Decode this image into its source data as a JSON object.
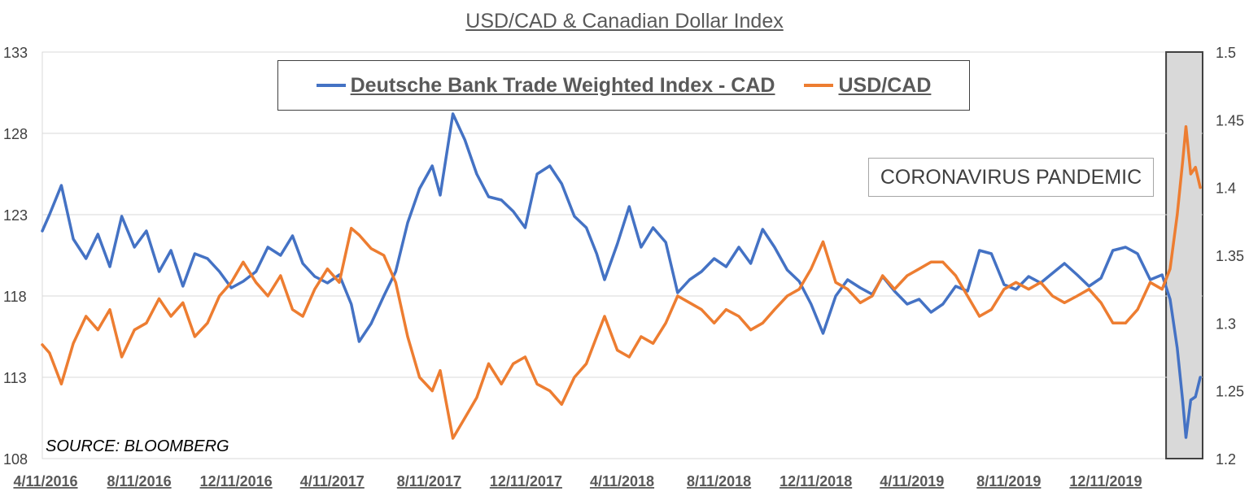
{
  "chart_data": {
    "type": "line",
    "title": "USD/CAD & Canadian Dollar Index",
    "source": "SOURCE: BLOOMBERG",
    "annotation": "CORONAVIRUS PANDEMIC",
    "grid": "horizontal",
    "legend_placement": "top-center",
    "x_range": [
      "2016-04-11",
      "2020-04-11"
    ],
    "x_tick_labels": [
      "4/11/2016",
      "8/11/2016",
      "12/11/2016",
      "4/11/2017",
      "8/11/2017",
      "12/11/2017",
      "4/11/2018",
      "8/11/2018",
      "12/11/2018",
      "4/11/2019",
      "8/11/2019",
      "12/11/2019"
    ],
    "y_left": {
      "ylim": [
        108,
        133
      ],
      "ticks": [
        108,
        113,
        118,
        123,
        128,
        133
      ]
    },
    "y_right": {
      "ylim": [
        1.2,
        1.5
      ],
      "ticks": [
        "1.2",
        "1.25",
        "1.3",
        "1.35",
        "1.4",
        "1.45",
        "1.5"
      ]
    },
    "shaded_period": [
      "2020-02-25",
      "2020-04-11"
    ],
    "series": [
      {
        "name": "Deutsche Bank Trade Weighted Index - CAD",
        "axis": "left",
        "color": "#4472c4",
        "points": [
          [
            "2016-04-11",
            122.0
          ],
          [
            "2016-04-20",
            123.0
          ],
          [
            "2016-05-05",
            124.8
          ],
          [
            "2016-05-20",
            121.5
          ],
          [
            "2016-06-05",
            120.3
          ],
          [
            "2016-06-20",
            121.8
          ],
          [
            "2016-07-05",
            119.8
          ],
          [
            "2016-07-20",
            122.9
          ],
          [
            "2016-08-05",
            121.0
          ],
          [
            "2016-08-20",
            122.0
          ],
          [
            "2016-09-05",
            119.5
          ],
          [
            "2016-09-20",
            120.8
          ],
          [
            "2016-10-05",
            118.6
          ],
          [
            "2016-10-20",
            120.6
          ],
          [
            "2016-11-05",
            120.3
          ],
          [
            "2016-11-20",
            119.5
          ],
          [
            "2016-12-05",
            118.5
          ],
          [
            "2016-12-20",
            118.9
          ],
          [
            "2017-01-05",
            119.5
          ],
          [
            "2017-01-20",
            121.0
          ],
          [
            "2017-02-05",
            120.5
          ],
          [
            "2017-02-20",
            121.7
          ],
          [
            "2017-03-05",
            120.0
          ],
          [
            "2017-03-20",
            119.2
          ],
          [
            "2017-04-05",
            118.8
          ],
          [
            "2017-04-20",
            119.3
          ],
          [
            "2017-05-05",
            117.5
          ],
          [
            "2017-05-15",
            115.2
          ],
          [
            "2017-05-30",
            116.3
          ],
          [
            "2017-06-15",
            118.0
          ],
          [
            "2017-06-30",
            119.5
          ],
          [
            "2017-07-15",
            122.5
          ],
          [
            "2017-07-30",
            124.6
          ],
          [
            "2017-08-15",
            126.0
          ],
          [
            "2017-08-25",
            124.2
          ],
          [
            "2017-09-10",
            129.2
          ],
          [
            "2017-09-25",
            127.6
          ],
          [
            "2017-10-10",
            125.5
          ],
          [
            "2017-10-25",
            124.1
          ],
          [
            "2017-11-10",
            123.9
          ],
          [
            "2017-11-25",
            123.2
          ],
          [
            "2017-12-10",
            122.2
          ],
          [
            "2017-12-25",
            125.5
          ],
          [
            "2018-01-10",
            126.0
          ],
          [
            "2018-01-25",
            124.9
          ],
          [
            "2018-02-10",
            122.9
          ],
          [
            "2018-02-25",
            122.2
          ],
          [
            "2018-03-10",
            120.6
          ],
          [
            "2018-03-20",
            119.0
          ],
          [
            "2018-04-05",
            121.2
          ],
          [
            "2018-04-20",
            123.5
          ],
          [
            "2018-05-05",
            121.0
          ],
          [
            "2018-05-20",
            122.2
          ],
          [
            "2018-06-05",
            121.3
          ],
          [
            "2018-06-20",
            118.2
          ],
          [
            "2018-07-05",
            119.0
          ],
          [
            "2018-07-20",
            119.5
          ],
          [
            "2018-08-05",
            120.3
          ],
          [
            "2018-08-20",
            119.8
          ],
          [
            "2018-09-05",
            121.0
          ],
          [
            "2018-09-20",
            120.0
          ],
          [
            "2018-10-05",
            122.1
          ],
          [
            "2018-10-20",
            121.0
          ],
          [
            "2018-11-05",
            119.6
          ],
          [
            "2018-11-20",
            118.9
          ],
          [
            "2018-12-05",
            117.5
          ],
          [
            "2018-12-20",
            115.7
          ],
          [
            "2019-01-05",
            118.0
          ],
          [
            "2019-01-20",
            119.0
          ],
          [
            "2019-02-05",
            118.5
          ],
          [
            "2019-02-20",
            118.1
          ],
          [
            "2019-03-05",
            119.2
          ],
          [
            "2019-03-20",
            118.3
          ],
          [
            "2019-04-05",
            117.5
          ],
          [
            "2019-04-20",
            117.8
          ],
          [
            "2019-05-05",
            117.0
          ],
          [
            "2019-05-20",
            117.5
          ],
          [
            "2019-06-05",
            118.6
          ],
          [
            "2019-06-20",
            118.3
          ],
          [
            "2019-07-05",
            120.8
          ],
          [
            "2019-07-20",
            120.6
          ],
          [
            "2019-08-05",
            118.7
          ],
          [
            "2019-08-20",
            118.4
          ],
          [
            "2019-09-05",
            119.2
          ],
          [
            "2019-09-20",
            118.8
          ],
          [
            "2019-10-05",
            119.4
          ],
          [
            "2019-10-20",
            120.0
          ],
          [
            "2019-11-05",
            119.3
          ],
          [
            "2019-11-20",
            118.6
          ],
          [
            "2019-12-05",
            119.1
          ],
          [
            "2019-12-20",
            120.8
          ],
          [
            "2020-01-05",
            121.0
          ],
          [
            "2020-01-20",
            120.6
          ],
          [
            "2020-02-05",
            119.0
          ],
          [
            "2020-02-20",
            119.3
          ],
          [
            "2020-03-01",
            117.8
          ],
          [
            "2020-03-10",
            114.8
          ],
          [
            "2020-03-17",
            111.5
          ],
          [
            "2020-03-21",
            109.3
          ],
          [
            "2020-03-27",
            111.6
          ],
          [
            "2020-04-02",
            111.8
          ],
          [
            "2020-04-08",
            113.0
          ]
        ]
      },
      {
        "name": "USD/CAD",
        "axis": "right",
        "color": "#ed7d31",
        "points": [
          [
            "2016-04-11",
            1.284
          ],
          [
            "2016-04-20",
            1.278
          ],
          [
            "2016-05-05",
            1.255
          ],
          [
            "2016-05-20",
            1.285
          ],
          [
            "2016-06-05",
            1.305
          ],
          [
            "2016-06-20",
            1.295
          ],
          [
            "2016-07-05",
            1.31
          ],
          [
            "2016-07-20",
            1.275
          ],
          [
            "2016-08-05",
            1.295
          ],
          [
            "2016-08-20",
            1.3
          ],
          [
            "2016-09-05",
            1.318
          ],
          [
            "2016-09-20",
            1.305
          ],
          [
            "2016-10-05",
            1.315
          ],
          [
            "2016-10-20",
            1.29
          ],
          [
            "2016-11-05",
            1.3
          ],
          [
            "2016-11-20",
            1.32
          ],
          [
            "2016-12-05",
            1.33
          ],
          [
            "2016-12-20",
            1.345
          ],
          [
            "2017-01-05",
            1.33
          ],
          [
            "2017-01-20",
            1.32
          ],
          [
            "2017-02-05",
            1.335
          ],
          [
            "2017-02-20",
            1.31
          ],
          [
            "2017-03-05",
            1.305
          ],
          [
            "2017-03-20",
            1.325
          ],
          [
            "2017-04-05",
            1.34
          ],
          [
            "2017-04-20",
            1.33
          ],
          [
            "2017-05-05",
            1.37
          ],
          [
            "2017-05-15",
            1.365
          ],
          [
            "2017-05-30",
            1.355
          ],
          [
            "2017-06-15",
            1.35
          ],
          [
            "2017-06-30",
            1.33
          ],
          [
            "2017-07-15",
            1.29
          ],
          [
            "2017-07-30",
            1.26
          ],
          [
            "2017-08-15",
            1.25
          ],
          [
            "2017-08-25",
            1.265
          ],
          [
            "2017-09-10",
            1.215
          ],
          [
            "2017-09-25",
            1.23
          ],
          [
            "2017-10-10",
            1.245
          ],
          [
            "2017-10-25",
            1.27
          ],
          [
            "2017-11-10",
            1.255
          ],
          [
            "2017-11-25",
            1.27
          ],
          [
            "2017-12-10",
            1.275
          ],
          [
            "2017-12-25",
            1.255
          ],
          [
            "2018-01-10",
            1.25
          ],
          [
            "2018-01-25",
            1.24
          ],
          [
            "2018-02-10",
            1.26
          ],
          [
            "2018-02-25",
            1.27
          ],
          [
            "2018-03-10",
            1.29
          ],
          [
            "2018-03-20",
            1.305
          ],
          [
            "2018-04-05",
            1.28
          ],
          [
            "2018-04-20",
            1.275
          ],
          [
            "2018-05-05",
            1.29
          ],
          [
            "2018-05-20",
            1.285
          ],
          [
            "2018-06-05",
            1.3
          ],
          [
            "2018-06-20",
            1.32
          ],
          [
            "2018-07-05",
            1.315
          ],
          [
            "2018-07-20",
            1.31
          ],
          [
            "2018-08-05",
            1.3
          ],
          [
            "2018-08-20",
            1.31
          ],
          [
            "2018-09-05",
            1.305
          ],
          [
            "2018-09-20",
            1.295
          ],
          [
            "2018-10-05",
            1.3
          ],
          [
            "2018-10-20",
            1.31
          ],
          [
            "2018-11-05",
            1.32
          ],
          [
            "2018-11-20",
            1.325
          ],
          [
            "2018-12-05",
            1.34
          ],
          [
            "2018-12-20",
            1.36
          ],
          [
            "2019-01-05",
            1.33
          ],
          [
            "2019-01-20",
            1.325
          ],
          [
            "2019-02-05",
            1.315
          ],
          [
            "2019-02-20",
            1.32
          ],
          [
            "2019-03-05",
            1.335
          ],
          [
            "2019-03-20",
            1.325
          ],
          [
            "2019-04-05",
            1.335
          ],
          [
            "2019-04-20",
            1.34
          ],
          [
            "2019-05-05",
            1.345
          ],
          [
            "2019-05-20",
            1.345
          ],
          [
            "2019-06-05",
            1.335
          ],
          [
            "2019-06-20",
            1.32
          ],
          [
            "2019-07-05",
            1.305
          ],
          [
            "2019-07-20",
            1.31
          ],
          [
            "2019-08-05",
            1.325
          ],
          [
            "2019-08-20",
            1.33
          ],
          [
            "2019-09-05",
            1.325
          ],
          [
            "2019-09-20",
            1.33
          ],
          [
            "2019-10-05",
            1.32
          ],
          [
            "2019-10-20",
            1.315
          ],
          [
            "2019-11-05",
            1.32
          ],
          [
            "2019-11-20",
            1.325
          ],
          [
            "2019-12-05",
            1.315
          ],
          [
            "2019-12-20",
            1.3
          ],
          [
            "2020-01-05",
            1.3
          ],
          [
            "2020-01-20",
            1.31
          ],
          [
            "2020-02-05",
            1.33
          ],
          [
            "2020-02-20",
            1.325
          ],
          [
            "2020-03-01",
            1.34
          ],
          [
            "2020-03-10",
            1.38
          ],
          [
            "2020-03-17",
            1.42
          ],
          [
            "2020-03-21",
            1.445
          ],
          [
            "2020-03-27",
            1.41
          ],
          [
            "2020-04-02",
            1.415
          ],
          [
            "2020-04-08",
            1.4
          ]
        ]
      }
    ]
  }
}
